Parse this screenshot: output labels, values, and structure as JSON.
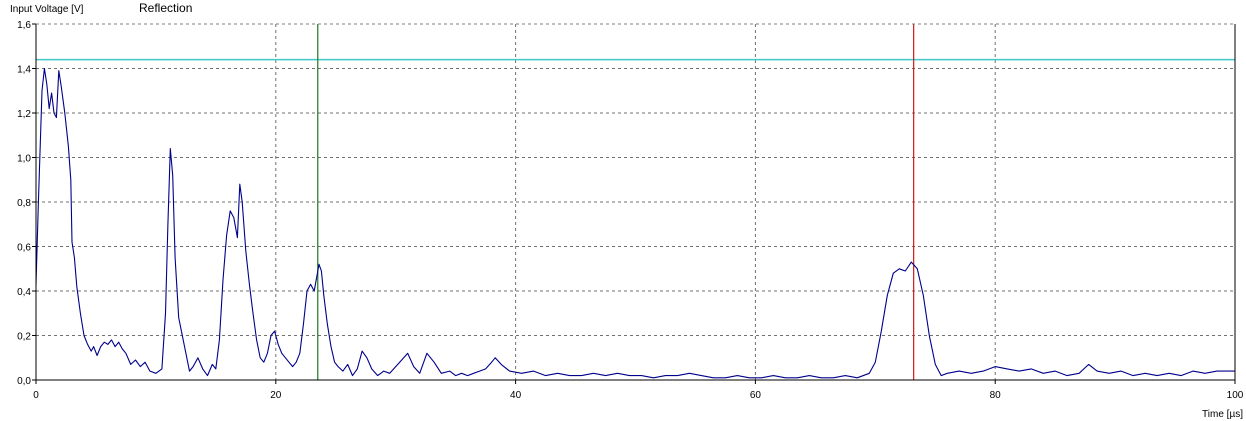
{
  "chart_data": {
    "type": "line",
    "ylabel": "Input Voltage [V]",
    "xlabel": "Time [µs]",
    "xlim": [
      0,
      100
    ],
    "ylim": [
      0,
      1.6
    ],
    "x_ticks": [
      0,
      20,
      40,
      60,
      80,
      100
    ],
    "x_tick_labels": [
      "0",
      "20",
      "40",
      "60",
      "80",
      "100"
    ],
    "y_ticks": [
      0,
      0.2,
      0.4,
      0.6,
      0.8,
      1.0,
      1.2,
      1.4,
      1.6
    ],
    "y_tick_labels": [
      "0,0",
      "0,2",
      "0,4",
      "0,6",
      "0,8",
      "1,0",
      "1,2",
      "1,4",
      "1,6"
    ],
    "grid": true,
    "legend_position": "top-left",
    "threshold_level": 1.44,
    "threshold_color": "#40c8c8",
    "markers": [
      {
        "x": 23.5,
        "color": "#1a7a1a"
      },
      {
        "x": 73.2,
        "color": "#d01818"
      }
    ],
    "series": [
      {
        "name": "Reflection",
        "color": "#00008b",
        "points": [
          [
            0,
            0.43
          ],
          [
            0.2,
            0.8
          ],
          [
            0.5,
            1.3
          ],
          [
            0.7,
            1.4
          ],
          [
            0.9,
            1.33
          ],
          [
            1.1,
            1.22
          ],
          [
            1.3,
            1.29
          ],
          [
            1.5,
            1.2
          ],
          [
            1.7,
            1.18
          ],
          [
            1.9,
            1.39
          ],
          [
            2.1,
            1.32
          ],
          [
            2.4,
            1.2
          ],
          [
            2.7,
            1.05
          ],
          [
            2.9,
            0.9
          ],
          [
            3.0,
            0.62
          ],
          [
            3.2,
            0.55
          ],
          [
            3.4,
            0.42
          ],
          [
            3.7,
            0.3
          ],
          [
            4.0,
            0.2
          ],
          [
            4.3,
            0.16
          ],
          [
            4.6,
            0.13
          ],
          [
            4.8,
            0.15
          ],
          [
            5.1,
            0.11
          ],
          [
            5.4,
            0.15
          ],
          [
            5.7,
            0.17
          ],
          [
            6.0,
            0.16
          ],
          [
            6.3,
            0.18
          ],
          [
            6.6,
            0.15
          ],
          [
            6.9,
            0.17
          ],
          [
            7.2,
            0.14
          ],
          [
            7.5,
            0.12
          ],
          [
            7.9,
            0.07
          ],
          [
            8.3,
            0.09
          ],
          [
            8.7,
            0.06
          ],
          [
            9.1,
            0.08
          ],
          [
            9.5,
            0.04
          ],
          [
            10.0,
            0.03
          ],
          [
            10.5,
            0.05
          ],
          [
            10.8,
            0.3
          ],
          [
            11.0,
            0.7
          ],
          [
            11.2,
            1.04
          ],
          [
            11.4,
            0.92
          ],
          [
            11.6,
            0.55
          ],
          [
            11.9,
            0.28
          ],
          [
            12.2,
            0.2
          ],
          [
            12.5,
            0.12
          ],
          [
            12.8,
            0.04
          ],
          [
            13.1,
            0.06
          ],
          [
            13.5,
            0.1
          ],
          [
            13.9,
            0.05
          ],
          [
            14.3,
            0.02
          ],
          [
            14.7,
            0.07
          ],
          [
            15.0,
            0.05
          ],
          [
            15.3,
            0.18
          ],
          [
            15.6,
            0.45
          ],
          [
            15.9,
            0.65
          ],
          [
            16.2,
            0.76
          ],
          [
            16.5,
            0.73
          ],
          [
            16.8,
            0.64
          ],
          [
            17.0,
            0.88
          ],
          [
            17.2,
            0.8
          ],
          [
            17.5,
            0.58
          ],
          [
            17.8,
            0.43
          ],
          [
            18.1,
            0.3
          ],
          [
            18.4,
            0.18
          ],
          [
            18.7,
            0.1
          ],
          [
            19.0,
            0.08
          ],
          [
            19.3,
            0.12
          ],
          [
            19.6,
            0.2
          ],
          [
            19.9,
            0.22
          ],
          [
            20.2,
            0.16
          ],
          [
            20.5,
            0.12
          ],
          [
            20.8,
            0.1
          ],
          [
            21.1,
            0.08
          ],
          [
            21.4,
            0.06
          ],
          [
            21.7,
            0.08
          ],
          [
            22.0,
            0.12
          ],
          [
            22.3,
            0.25
          ],
          [
            22.6,
            0.4
          ],
          [
            22.9,
            0.43
          ],
          [
            23.2,
            0.4
          ],
          [
            23.6,
            0.52
          ],
          [
            23.8,
            0.49
          ],
          [
            24.0,
            0.38
          ],
          [
            24.3,
            0.25
          ],
          [
            24.6,
            0.15
          ],
          [
            24.9,
            0.08
          ],
          [
            25.2,
            0.06
          ],
          [
            25.6,
            0.04
          ],
          [
            26.0,
            0.07
          ],
          [
            26.4,
            0.02
          ],
          [
            26.8,
            0.05
          ],
          [
            27.2,
            0.13
          ],
          [
            27.6,
            0.1
          ],
          [
            28.0,
            0.05
          ],
          [
            28.5,
            0.02
          ],
          [
            29.0,
            0.04
          ],
          [
            29.5,
            0.03
          ],
          [
            30.0,
            0.06
          ],
          [
            30.5,
            0.09
          ],
          [
            31.0,
            0.12
          ],
          [
            31.5,
            0.06
          ],
          [
            32.0,
            0.03
          ],
          [
            32.6,
            0.12
          ],
          [
            33.2,
            0.08
          ],
          [
            33.8,
            0.03
          ],
          [
            34.5,
            0.04
          ],
          [
            35.0,
            0.02
          ],
          [
            35.5,
            0.03
          ],
          [
            36.0,
            0.02
          ],
          [
            36.5,
            0.03
          ],
          [
            37.0,
            0.04
          ],
          [
            37.5,
            0.05
          ],
          [
            38.0,
            0.08
          ],
          [
            38.3,
            0.1
          ],
          [
            38.8,
            0.07
          ],
          [
            39.5,
            0.04
          ],
          [
            40.5,
            0.03
          ],
          [
            41.5,
            0.04
          ],
          [
            42.5,
            0.02
          ],
          [
            43.5,
            0.03
          ],
          [
            44.5,
            0.02
          ],
          [
            45.5,
            0.02
          ],
          [
            46.5,
            0.03
          ],
          [
            47.5,
            0.02
          ],
          [
            48.5,
            0.03
          ],
          [
            49.5,
            0.02
          ],
          [
            50.5,
            0.02
          ],
          [
            51.5,
            0.01
          ],
          [
            52.5,
            0.02
          ],
          [
            53.5,
            0.02
          ],
          [
            54.5,
            0.03
          ],
          [
            55.5,
            0.02
          ],
          [
            56.5,
            0.01
          ],
          [
            57.5,
            0.01
          ],
          [
            58.5,
            0.02
          ],
          [
            59.5,
            0.01
          ],
          [
            60.5,
            0.01
          ],
          [
            61.5,
            0.02
          ],
          [
            62.5,
            0.01
          ],
          [
            63.5,
            0.01
          ],
          [
            64.5,
            0.02
          ],
          [
            65.5,
            0.01
          ],
          [
            66.5,
            0.01
          ],
          [
            67.5,
            0.02
          ],
          [
            68.5,
            0.01
          ],
          [
            69.5,
            0.03
          ],
          [
            70.0,
            0.08
          ],
          [
            70.5,
            0.22
          ],
          [
            71.0,
            0.38
          ],
          [
            71.5,
            0.48
          ],
          [
            72.0,
            0.5
          ],
          [
            72.5,
            0.49
          ],
          [
            73.0,
            0.53
          ],
          [
            73.5,
            0.5
          ],
          [
            74.0,
            0.38
          ],
          [
            74.5,
            0.2
          ],
          [
            75.0,
            0.07
          ],
          [
            75.5,
            0.02
          ],
          [
            76.0,
            0.03
          ],
          [
            77.0,
            0.04
          ],
          [
            78.0,
            0.03
          ],
          [
            79.0,
            0.04
          ],
          [
            80.0,
            0.06
          ],
          [
            81.0,
            0.05
          ],
          [
            82.0,
            0.04
          ],
          [
            83.0,
            0.05
          ],
          [
            84.0,
            0.03
          ],
          [
            85.0,
            0.04
          ],
          [
            86.0,
            0.02
          ],
          [
            87.0,
            0.03
          ],
          [
            87.8,
            0.07
          ],
          [
            88.5,
            0.04
          ],
          [
            89.5,
            0.03
          ],
          [
            90.5,
            0.04
          ],
          [
            91.5,
            0.02
          ],
          [
            92.5,
            0.03
          ],
          [
            93.5,
            0.02
          ],
          [
            94.5,
            0.03
          ],
          [
            95.5,
            0.02
          ],
          [
            96.5,
            0.04
          ],
          [
            97.5,
            0.03
          ],
          [
            98.5,
            0.04
          ],
          [
            99.5,
            0.04
          ],
          [
            100,
            0.04
          ]
        ]
      }
    ]
  }
}
